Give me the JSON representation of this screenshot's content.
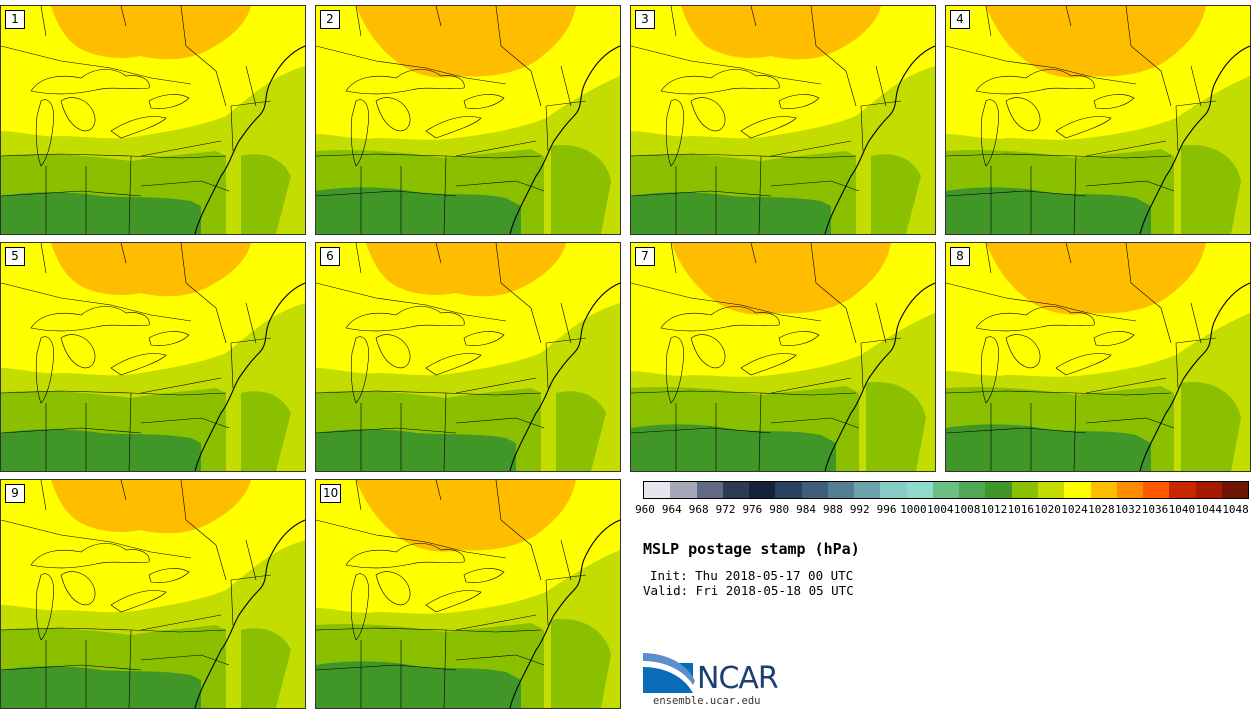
{
  "members": [
    {
      "label": "1"
    },
    {
      "label": "2"
    },
    {
      "label": "3"
    },
    {
      "label": "4"
    },
    {
      "label": "5"
    },
    {
      "label": "6"
    },
    {
      "label": "7"
    },
    {
      "label": "8"
    },
    {
      "label": "9"
    },
    {
      "label": "10"
    }
  ],
  "colorbar": {
    "ticks": [
      "960",
      "964",
      "968",
      "972",
      "976",
      "980",
      "984",
      "988",
      "992",
      "996",
      "1000",
      "1004",
      "1008",
      "1012",
      "1016",
      "1020",
      "1024",
      "1028",
      "1032",
      "1036",
      "1040",
      "1044",
      "1048"
    ],
    "colors": [
      "#e6e6ee",
      "#a3a7b7",
      "#606a82",
      "#2c3a56",
      "#16213a",
      "#2a4262",
      "#3e5e7c",
      "#547e94",
      "#6aa3aa",
      "#86cdc6",
      "#8fdacc",
      "#6cbf84",
      "#50a854",
      "#419628",
      "#8ac000",
      "#c3dd00",
      "#ffff00",
      "#ffbd00",
      "#ff8c00",
      "#ff5a00",
      "#c82800",
      "#a51a00",
      "#6e1400"
    ]
  },
  "title": "MSLP postage stamp (hPa)",
  "init": "Init: Thu 2018-05-17 00 UTC",
  "valid": "Valid: Fri 2018-05-18 05 UTC",
  "logo": {
    "text": "NCAR",
    "site": "ensemble.ucar.edu",
    "icon": "ncar-swoosh-icon"
  },
  "colors": {
    "c1012": "#419628",
    "c1016": "#8ac000",
    "c1020": "#c3dd00",
    "c1024": "#ffff00",
    "c1028": "#ffbd00",
    "border": "#000000"
  }
}
